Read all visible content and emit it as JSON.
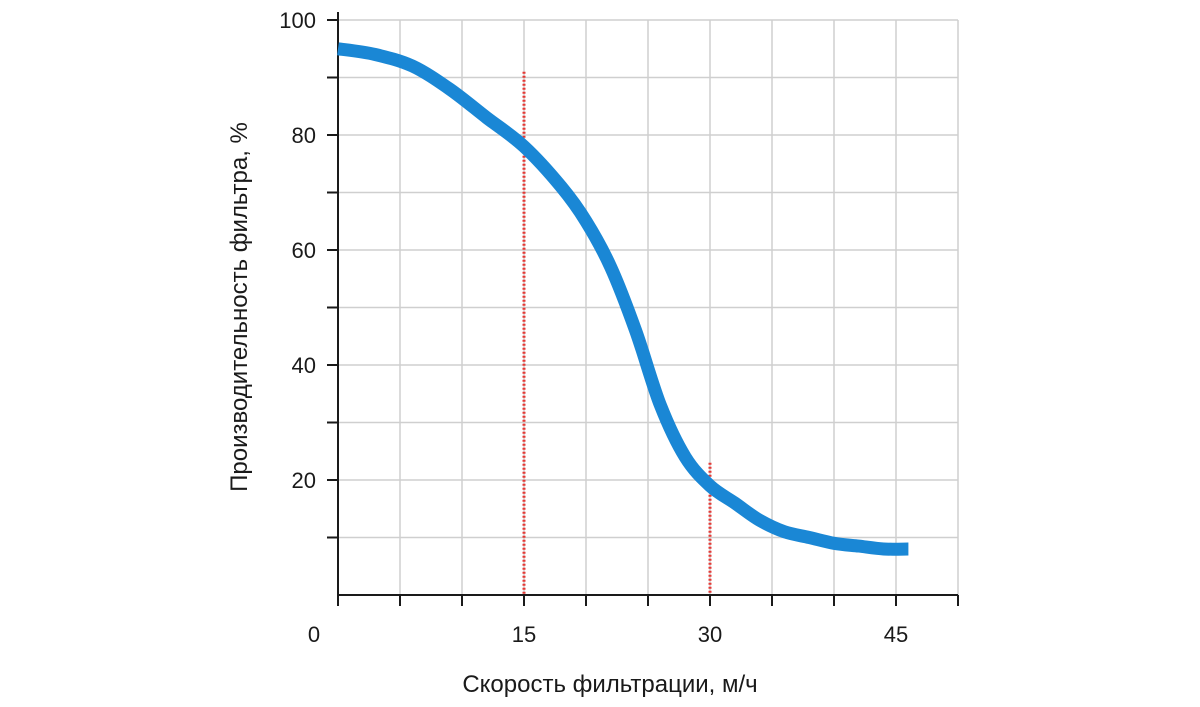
{
  "chart_data": {
    "type": "line",
    "title": "",
    "xlabel": "Скорость фильтрации, м/ч",
    "ylabel": "Производительность фильтра, %",
    "xlim": [
      0,
      50
    ],
    "ylim": [
      0,
      100
    ],
    "x_ticks": [
      0,
      15,
      30,
      45
    ],
    "x_tick_labels": [
      "0",
      "15",
      "30",
      "45"
    ],
    "y_ticks": [
      20,
      40,
      60,
      80,
      100
    ],
    "y_tick_labels": [
      "20",
      "40",
      "60",
      "80",
      "100"
    ],
    "grid": true,
    "grid_x_step": 5,
    "grid_y_step": 10,
    "series": [
      {
        "color": "#1a87d5",
        "x": [
          0,
          3,
          6,
          9,
          12,
          15,
          18,
          20,
          22,
          24,
          26,
          28,
          30,
          32,
          34,
          36,
          38,
          40,
          42,
          44,
          46
        ],
        "y": [
          95,
          94,
          92,
          88,
          83,
          78,
          71,
          65,
          57,
          46,
          33,
          24,
          19,
          16,
          13,
          11,
          10,
          9,
          8.5,
          8,
          8
        ]
      }
    ],
    "reference_lines": [
      {
        "x": 15,
        "y_top": 91,
        "color": "#e53935"
      },
      {
        "x": 30,
        "y_top": 23,
        "color": "#e53935"
      }
    ]
  }
}
